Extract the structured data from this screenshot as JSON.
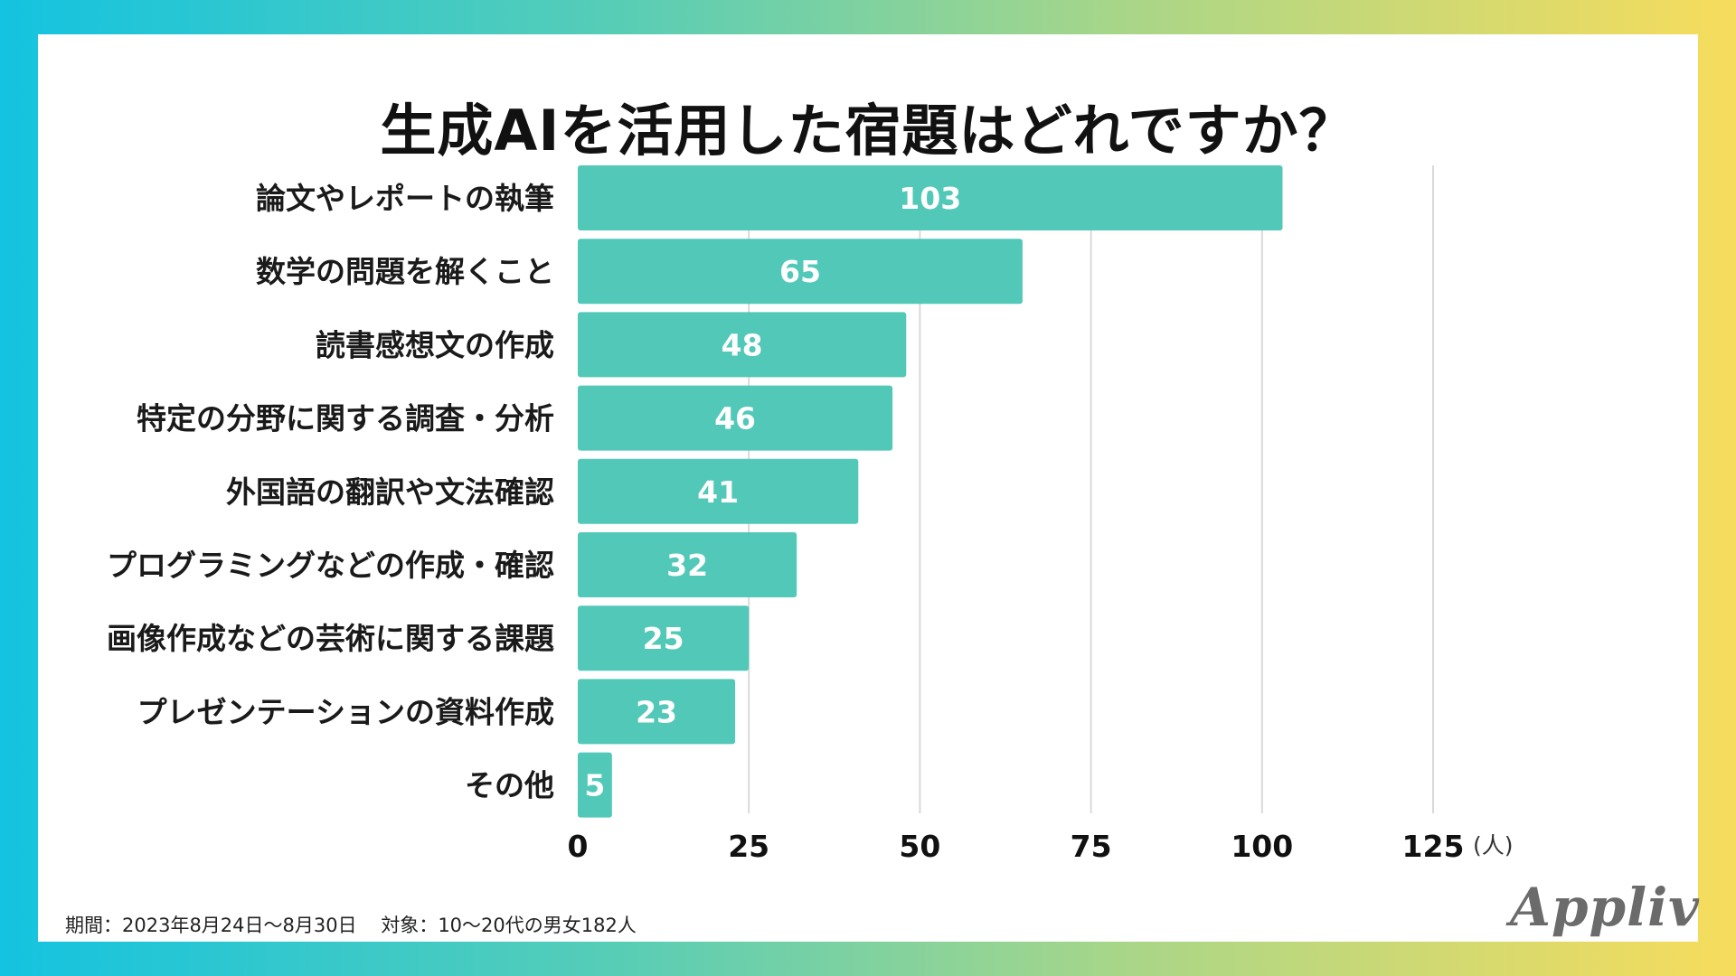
{
  "footnote": {
    "period_label": "期間：",
    "period": "2023年8月24日〜8月30日",
    "target_label": "対象：",
    "target": "10〜20代の男女182人"
  },
  "brand": {
    "logo_text": "Appliv"
  },
  "colors": {
    "bar": "#52c8b8",
    "grid": "#d9d9d9",
    "background_left": "#14c3e0",
    "background_right": "#f7dc5c"
  },
  "chart_data": {
    "type": "bar",
    "orientation": "horizontal",
    "title": "生成AIを活用した宿題はどれですか？",
    "categories": [
      "論文やレポートの執筆",
      "数学の問題を解くこと",
      "読書感想文の作成",
      "特定の分野に関する調査・分析",
      "外国語の翻訳や文法確認",
      "プログラミングなどの作成・確認",
      "画像作成などの芸術に関する課題",
      "プレゼンテーションの資料作成",
      "その他"
    ],
    "values": [
      103,
      65,
      48,
      46,
      41,
      32,
      25,
      23,
      5
    ],
    "xlim": [
      0,
      125
    ],
    "xticks": [
      0,
      25,
      50,
      75,
      100,
      125
    ],
    "unit": "(人)",
    "grid": true
  }
}
